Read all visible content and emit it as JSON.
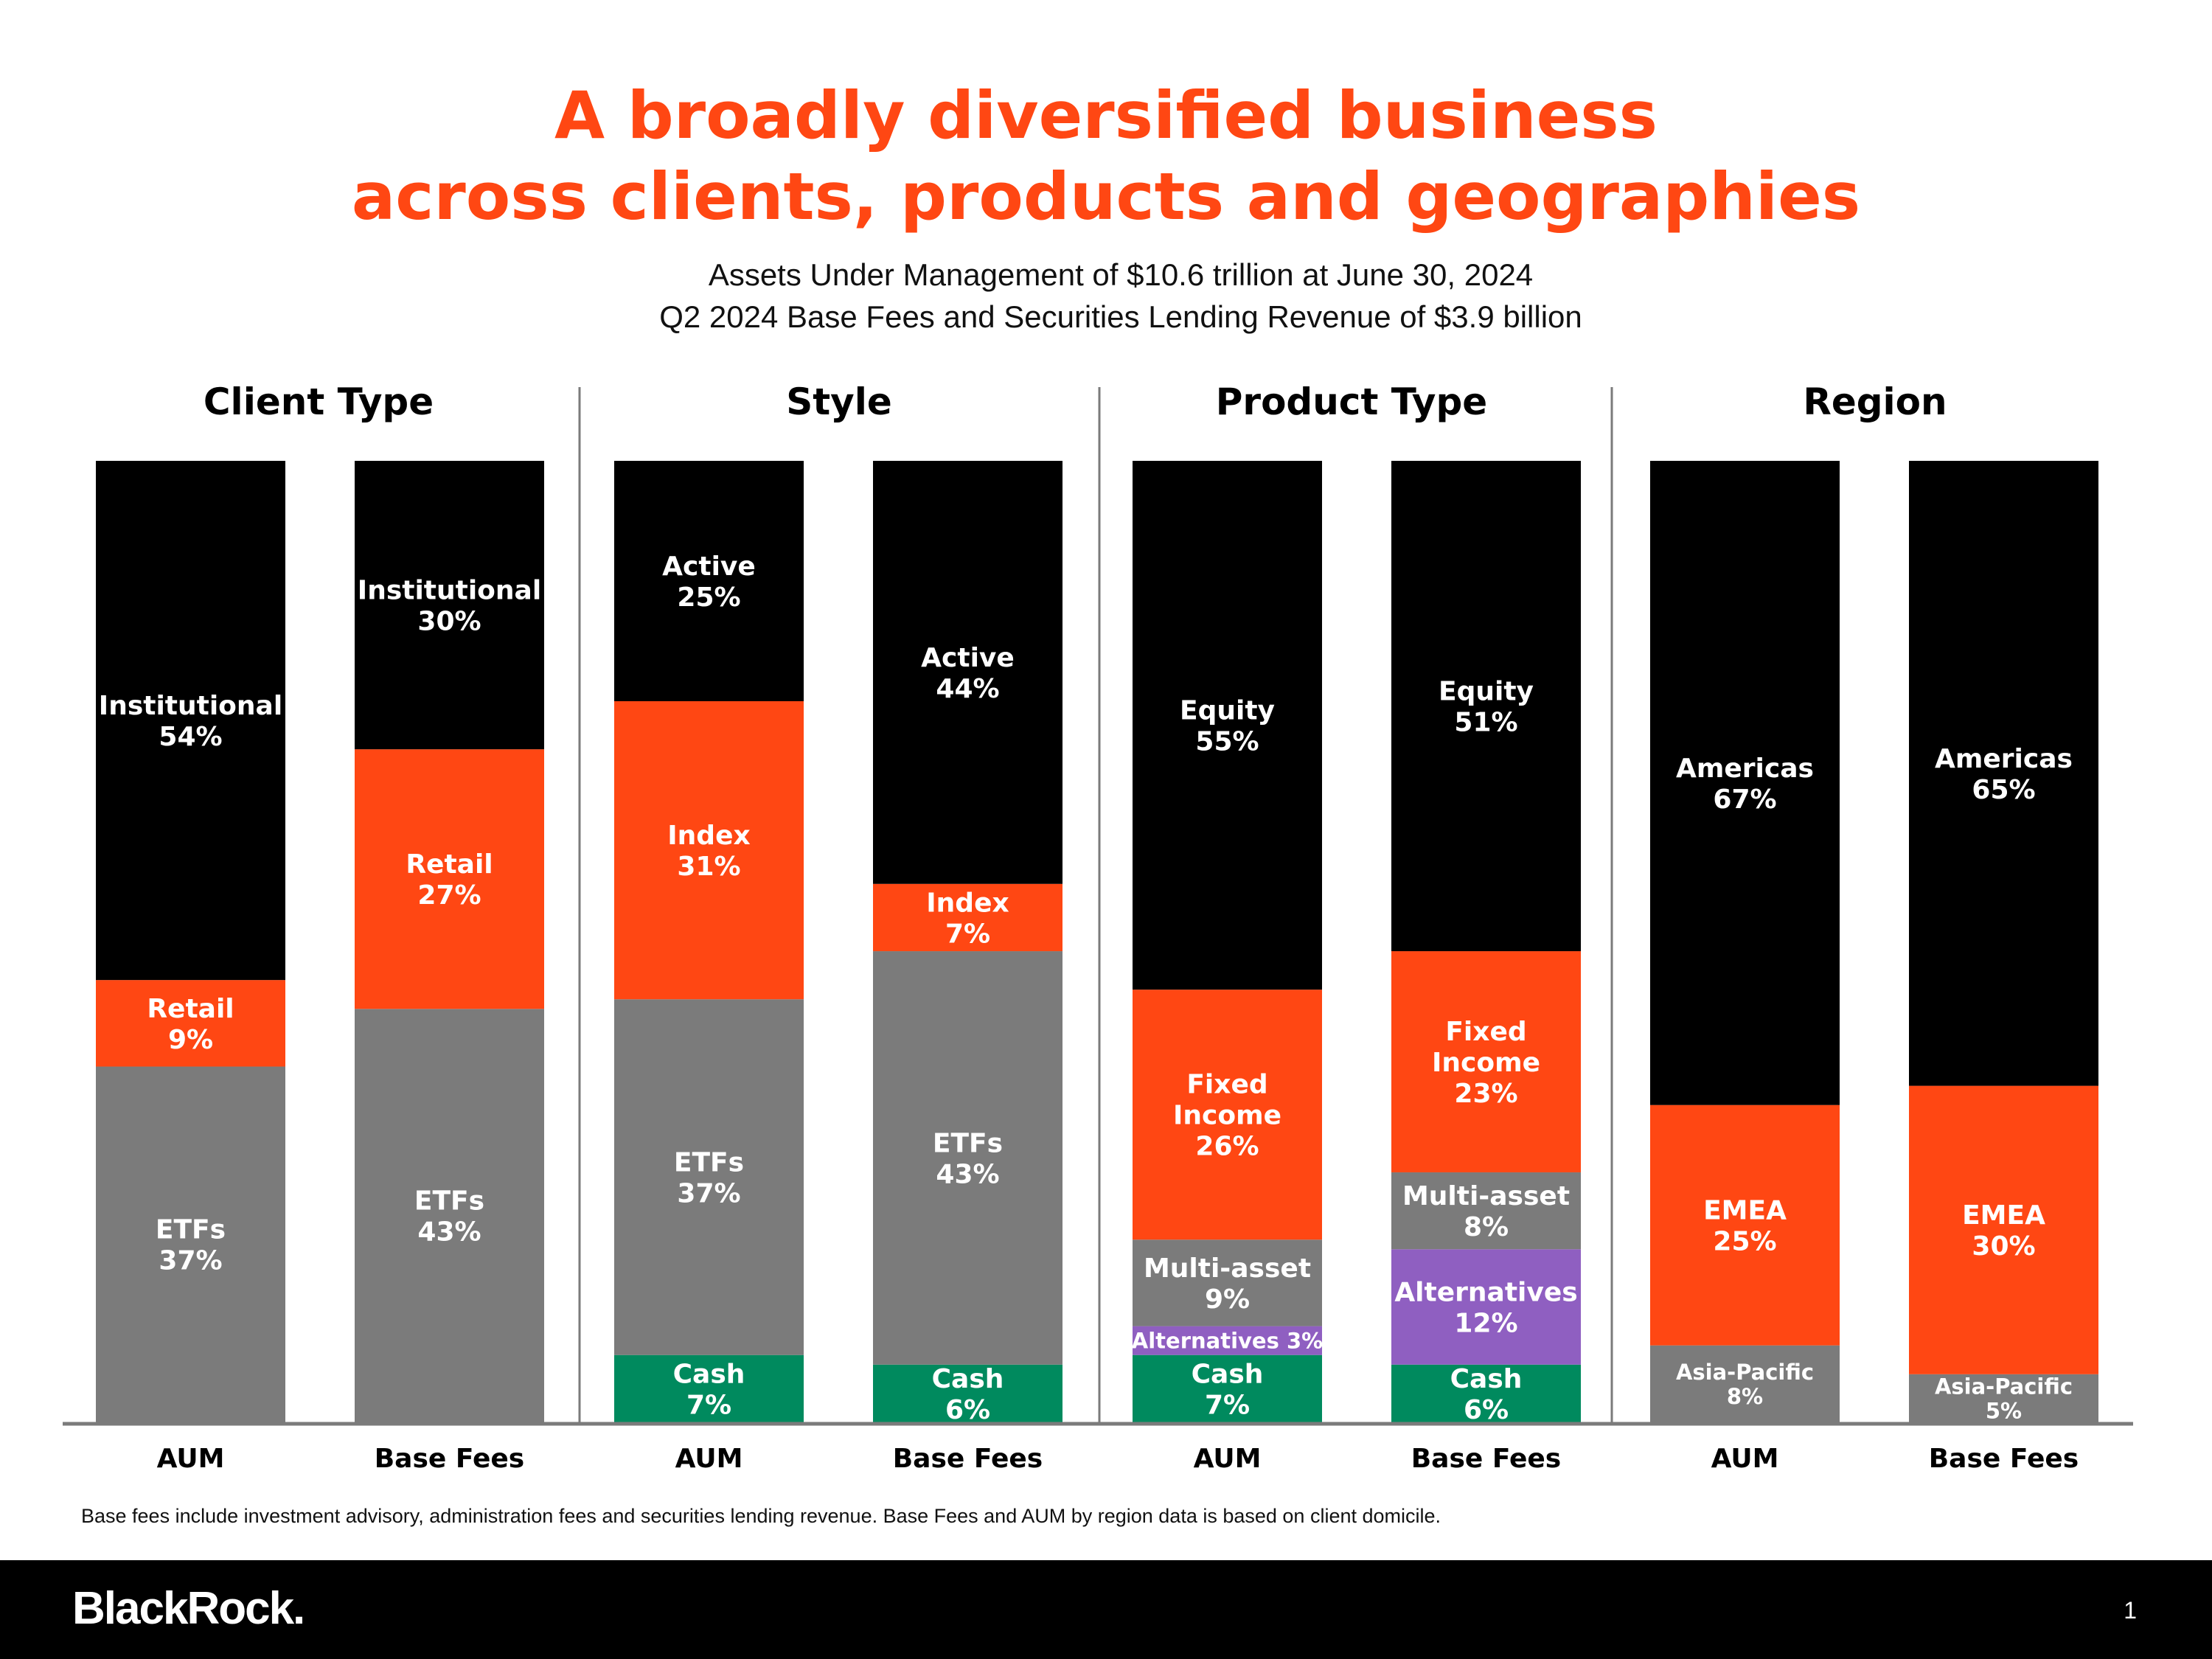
{
  "title": {
    "line1": "A broadly diversified business",
    "line2": "across clients, products and geographies"
  },
  "subtitle": {
    "line1": "Assets Under Management of $10.6 trillion at June 30, 2024",
    "line2": "Q2 2024 Base Fees and Securities Lending Revenue of $3.9 billion"
  },
  "colors": {
    "black": "#000000",
    "orange": "#ff4713",
    "gray": "#7b7b7b",
    "green": "#008a5e",
    "purple": "#8f5fc1",
    "title": "#ff4713"
  },
  "chart_data": {
    "type": "bar",
    "stacked": true,
    "normalized_percent": true,
    "ylim": [
      0,
      100
    ],
    "groups": [
      {
        "title": "Client Type",
        "bars": [
          {
            "label": "AUM",
            "segments": [
              {
                "name": "ETFs",
                "lines": [
                  "ETFs",
                  "37%"
                ],
                "value": 37,
                "color": "gray"
              },
              {
                "name": "Retail",
                "lines": [
                  "Retail",
                  "9%"
                ],
                "value": 9,
                "color": "orange"
              },
              {
                "name": "Institutional",
                "lines": [
                  "Institutional",
                  "54%"
                ],
                "value": 54,
                "color": "black"
              }
            ]
          },
          {
            "label": "Base Fees",
            "segments": [
              {
                "name": "ETFs",
                "lines": [
                  "ETFs",
                  "43%"
                ],
                "value": 43,
                "color": "gray"
              },
              {
                "name": "Retail",
                "lines": [
                  "Retail",
                  "27%"
                ],
                "value": 27,
                "color": "orange"
              },
              {
                "name": "Institutional",
                "lines": [
                  "Institutional",
                  "30%"
                ],
                "value": 30,
                "color": "black"
              }
            ]
          }
        ]
      },
      {
        "title": "Style",
        "bars": [
          {
            "label": "AUM",
            "segments": [
              {
                "name": "Cash",
                "lines": [
                  "Cash",
                  "7%"
                ],
                "value": 7,
                "color": "green"
              },
              {
                "name": "ETFs",
                "lines": [
                  "ETFs",
                  "37%"
                ],
                "value": 37,
                "color": "gray"
              },
              {
                "name": "Index",
                "lines": [
                  "Index",
                  "31%"
                ],
                "value": 31,
                "color": "orange"
              },
              {
                "name": "Active",
                "lines": [
                  "Active",
                  "25%"
                ],
                "value": 25,
                "color": "black"
              }
            ]
          },
          {
            "label": "Base Fees",
            "segments": [
              {
                "name": "Cash",
                "lines": [
                  "Cash",
                  "6%"
                ],
                "value": 6,
                "color": "green"
              },
              {
                "name": "ETFs",
                "lines": [
                  "ETFs",
                  "43%"
                ],
                "value": 43,
                "color": "gray"
              },
              {
                "name": "Index",
                "lines": [
                  "Index",
                  "7%"
                ],
                "value": 7,
                "color": "orange"
              },
              {
                "name": "Active",
                "lines": [
                  "Active",
                  "44%"
                ],
                "value": 44,
                "color": "black"
              }
            ]
          }
        ]
      },
      {
        "title": "Product Type",
        "bars": [
          {
            "label": "AUM",
            "segments": [
              {
                "name": "Cash",
                "lines": [
                  "Cash",
                  "7%"
                ],
                "value": 7,
                "color": "green"
              },
              {
                "name": "Alternatives",
                "lines": [
                  "Alternatives 3%"
                ],
                "value": 3,
                "color": "purple",
                "small": true
              },
              {
                "name": "Multi-asset",
                "lines": [
                  "Multi-asset",
                  "9%"
                ],
                "value": 9,
                "color": "gray"
              },
              {
                "name": "Fixed Income",
                "lines": [
                  "Fixed",
                  "Income",
                  "26%"
                ],
                "value": 26,
                "color": "orange"
              },
              {
                "name": "Equity",
                "lines": [
                  "Equity",
                  "55%"
                ],
                "value": 55,
                "color": "black"
              }
            ]
          },
          {
            "label": "Base Fees",
            "segments": [
              {
                "name": "Cash",
                "lines": [
                  "Cash",
                  "6%"
                ],
                "value": 6,
                "color": "green"
              },
              {
                "name": "Alternatives",
                "lines": [
                  "Alternatives",
                  "12%"
                ],
                "value": 12,
                "color": "purple"
              },
              {
                "name": "Multi-asset",
                "lines": [
                  "Multi-asset",
                  "8%"
                ],
                "value": 8,
                "color": "gray"
              },
              {
                "name": "Fixed Income",
                "lines": [
                  "Fixed",
                  "Income",
                  "23%"
                ],
                "value": 23,
                "color": "orange"
              },
              {
                "name": "Equity",
                "lines": [
                  "Equity",
                  "51%"
                ],
                "value": 51,
                "color": "black"
              }
            ]
          }
        ]
      },
      {
        "title": "Region",
        "bars": [
          {
            "label": "AUM",
            "segments": [
              {
                "name": "Asia-Pacific",
                "lines": [
                  "Asia-Pacific",
                  "8%"
                ],
                "value": 8,
                "color": "gray",
                "small": true
              },
              {
                "name": "EMEA",
                "lines": [
                  "EMEA",
                  "25%"
                ],
                "value": 25,
                "color": "orange"
              },
              {
                "name": "Americas",
                "lines": [
                  "Americas",
                  "67%"
                ],
                "value": 67,
                "color": "black"
              }
            ]
          },
          {
            "label": "Base Fees",
            "segments": [
              {
                "name": "Asia-Pacific",
                "lines": [
                  "Asia-Pacific",
                  "5%"
                ],
                "value": 5,
                "color": "gray",
                "small": true
              },
              {
                "name": "EMEA",
                "lines": [
                  "EMEA",
                  "30%"
                ],
                "value": 30,
                "color": "orange"
              },
              {
                "name": "Americas",
                "lines": [
                  "Americas",
                  "65%"
                ],
                "value": 65,
                "color": "black"
              }
            ]
          }
        ]
      }
    ]
  },
  "footnote": "Base fees include investment advisory, administration fees and securities lending revenue. Base Fees and AUM by region data is based on client domicile.",
  "footer": {
    "logo": "BlackRock.",
    "page_number": "1"
  }
}
